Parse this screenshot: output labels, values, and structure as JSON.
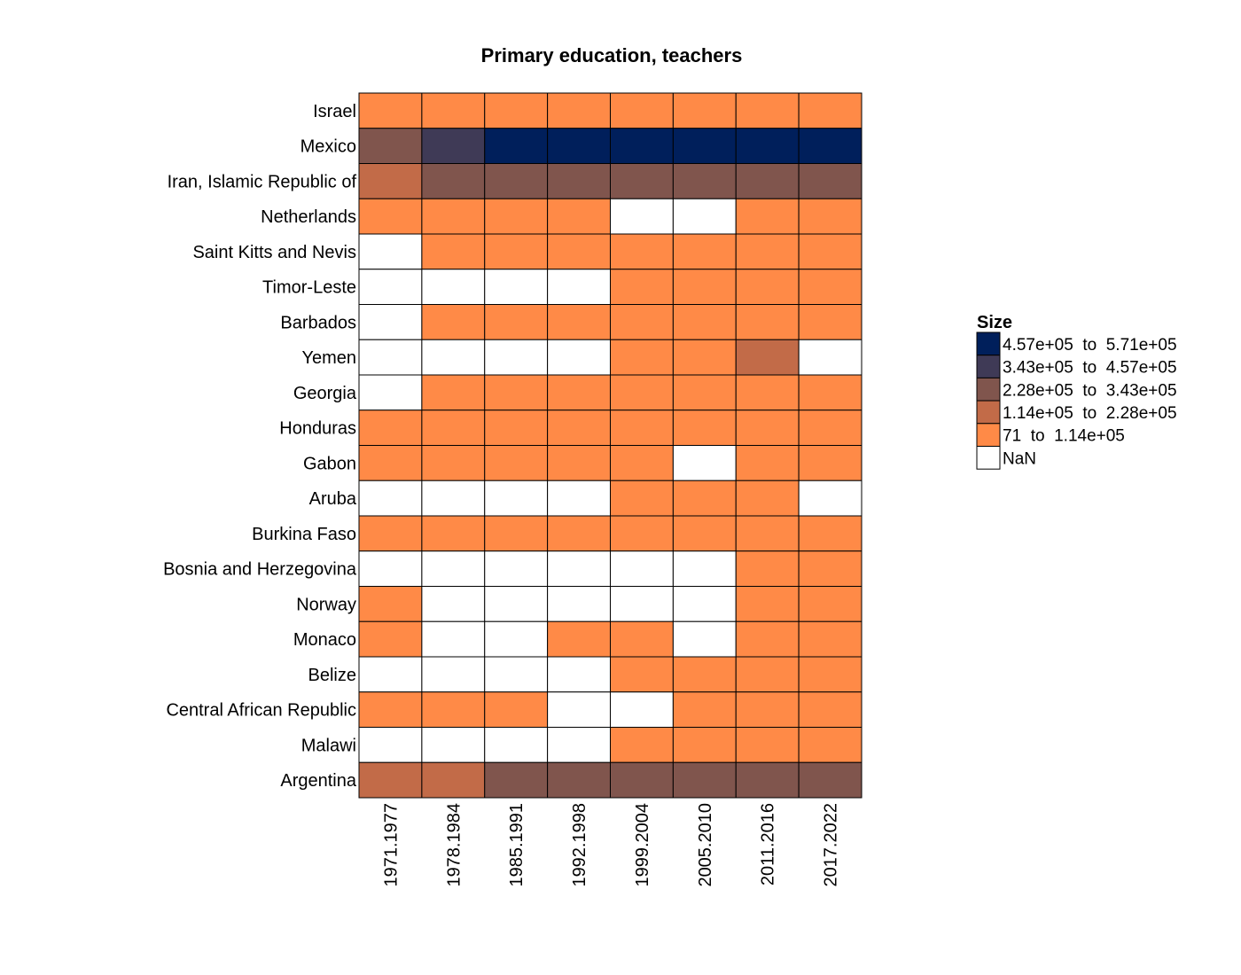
{
  "chart_data": {
    "type": "heatmap",
    "title": "Primary education, teachers",
    "xlabel": "",
    "ylabel": "",
    "columns": [
      "1971.1977",
      "1978.1984",
      "1985.1991",
      "1992.1998",
      "1999.2004",
      "2005.2010",
      "2011.2016",
      "2017.2022"
    ],
    "rows": [
      "Israel",
      "Mexico",
      "Iran, Islamic Republic of",
      "Netherlands",
      "Saint Kitts and Nevis",
      "Timor-Leste",
      "Barbados",
      "Yemen",
      "Georgia",
      "Honduras",
      "Gabon",
      "Aruba",
      "Burkina Faso",
      "Bosnia and Herzegovina",
      "Norway",
      "Monaco",
      "Belize",
      "Central African Republic",
      "Malawi",
      "Argentina"
    ],
    "cells": [
      [
        4,
        4,
        4,
        4,
        4,
        4,
        4,
        4
      ],
      [
        2,
        1,
        0,
        0,
        0,
        0,
        0,
        0
      ],
      [
        3,
        2,
        2,
        2,
        2,
        2,
        2,
        2
      ],
      [
        4,
        4,
        4,
        4,
        null,
        null,
        4,
        4
      ],
      [
        null,
        4,
        4,
        4,
        4,
        4,
        4,
        4
      ],
      [
        null,
        null,
        null,
        null,
        4,
        4,
        4,
        4
      ],
      [
        null,
        4,
        4,
        4,
        4,
        4,
        4,
        4
      ],
      [
        null,
        null,
        null,
        null,
        4,
        4,
        3,
        null
      ],
      [
        null,
        4,
        4,
        4,
        4,
        4,
        4,
        4
      ],
      [
        4,
        4,
        4,
        4,
        4,
        4,
        4,
        4
      ],
      [
        4,
        4,
        4,
        4,
        4,
        null,
        4,
        4
      ],
      [
        null,
        null,
        null,
        null,
        4,
        4,
        4,
        null
      ],
      [
        4,
        4,
        4,
        4,
        4,
        4,
        4,
        4
      ],
      [
        null,
        null,
        null,
        null,
        null,
        null,
        4,
        4
      ],
      [
        4,
        null,
        null,
        null,
        null,
        null,
        4,
        4
      ],
      [
        4,
        null,
        null,
        4,
        4,
        null,
        4,
        4
      ],
      [
        null,
        null,
        null,
        null,
        4,
        4,
        4,
        4
      ],
      [
        4,
        4,
        4,
        null,
        null,
        4,
        4,
        4
      ],
      [
        null,
        null,
        null,
        null,
        4,
        4,
        4,
        4
      ],
      [
        3,
        3,
        2,
        2,
        2,
        2,
        2,
        2
      ]
    ],
    "legend": {
      "title": "Size",
      "placement": "right",
      "bins": [
        {
          "label": "4.57e+05  to  5.71e+05",
          "color": "#001f5b"
        },
        {
          "label": "3.43e+05  to  4.57e+05",
          "color": "#3f3a56"
        },
        {
          "label": "2.28e+05  to  3.43e+05",
          "color": "#80554d"
        },
        {
          "label": "1.14e+05  to  2.28e+05",
          "color": "#c26b48"
        },
        {
          "label": "71  to  1.14e+05",
          "color": "#ff8a47"
        },
        {
          "label": "NaN",
          "color": "#ffffff"
        }
      ]
    }
  }
}
